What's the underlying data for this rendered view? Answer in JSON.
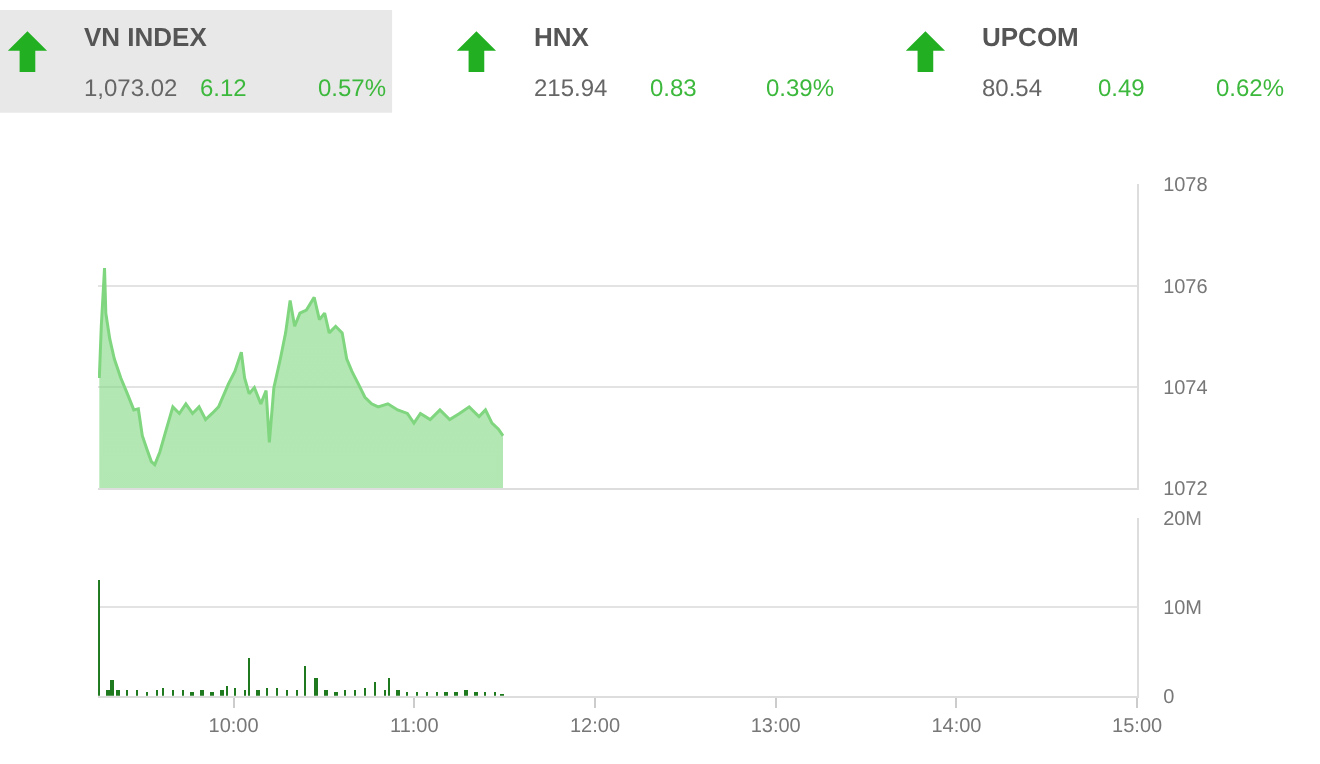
{
  "chart_data": [
    {
      "type": "other",
      "annotations": [
        "VN INDEX",
        "1,073.02",
        "6.12",
        "0.57%",
        "HNX",
        "215.94",
        "0.83",
        "0.39%",
        "UPCOM",
        "80.54",
        "0.49",
        "0.62%"
      ]
    },
    {
      "type": "area",
      "color": "#7fd67f",
      "xlim": [
        9.25,
        15
      ],
      "ylim": [
        1072,
        1078
      ],
      "yticks": [
        1072,
        1074,
        1076,
        1078
      ],
      "grid": "y",
      "tick_labels": "y",
      "x": [
        9.257,
        9.268,
        9.286,
        9.293,
        9.315,
        9.34,
        9.376,
        9.412,
        9.448,
        9.473,
        9.495,
        9.52,
        9.545,
        9.564,
        9.592,
        9.628,
        9.664,
        9.7,
        9.736,
        9.773,
        9.809,
        9.845,
        9.881,
        9.917,
        9.971,
        10.007,
        10.043,
        10.061,
        10.086,
        10.115,
        10.151,
        10.18,
        10.198,
        10.223,
        10.259,
        10.288,
        10.313,
        10.338,
        10.367,
        10.403,
        10.446,
        10.475,
        10.504,
        10.529,
        10.565,
        10.601,
        10.626,
        10.655,
        10.691,
        10.727,
        10.764,
        10.8,
        10.854,
        10.908,
        10.962,
        10.998,
        11.034,
        11.088,
        11.142,
        11.196,
        11.25,
        11.304,
        11.358,
        11.394,
        11.43,
        11.466,
        11.491
      ],
      "values": [
        1074.18,
        1075.2,
        1076.35,
        1075.46,
        1074.95,
        1074.56,
        1074.18,
        1073.87,
        1073.55,
        1073.57,
        1073.04,
        1072.78,
        1072.53,
        1072.47,
        1072.72,
        1073.17,
        1073.61,
        1073.48,
        1073.67,
        1073.48,
        1073.61,
        1073.36,
        1073.48,
        1073.61,
        1074.06,
        1074.31,
        1074.69,
        1074.18,
        1073.87,
        1073.99,
        1073.67,
        1073.93,
        1072.91,
        1073.99,
        1074.56,
        1075.07,
        1075.71,
        1075.2,
        1075.46,
        1075.52,
        1075.77,
        1075.33,
        1075.46,
        1075.07,
        1075.2,
        1075.07,
        1074.56,
        1074.31,
        1074.06,
        1073.8,
        1073.67,
        1073.61,
        1073.67,
        1073.55,
        1073.48,
        1073.29,
        1073.48,
        1073.36,
        1073.55,
        1073.36,
        1073.48,
        1073.61,
        1073.42,
        1073.55,
        1073.29,
        1073.17,
        1073.04
      ]
    },
    {
      "type": "bar",
      "color": "#1f7a1f",
      "xlim": [
        9.25,
        15
      ],
      "ylim": [
        0,
        20
      ],
      "grid": "y",
      "yticks": [
        0,
        {
          "value": 10,
          "label": "10M"
        },
        {
          "value": 20,
          "label": "20M"
        }
      ],
      "xticks": [
        {
          "value": 10,
          "label": "10:00"
        },
        {
          "value": 11,
          "label": "11:00"
        },
        {
          "value": 12,
          "label": "12:00"
        },
        {
          "value": 13,
          "label": "13:00"
        },
        {
          "value": 14,
          "label": "14:00"
        },
        {
          "value": 15,
          "label": "15:00"
        }
      ],
      "x": [
        9.257,
        9.304,
        9.329,
        9.358,
        9.412,
        9.466,
        9.52,
        9.574,
        9.61,
        9.664,
        9.718,
        9.773,
        9.827,
        9.881,
        9.935,
        9.964,
        10.007,
        10.061,
        10.086,
        10.133,
        10.187,
        10.241,
        10.295,
        10.349,
        10.396,
        10.457,
        10.511,
        10.565,
        10.619,
        10.673,
        10.727,
        10.782,
        10.836,
        10.861,
        10.908,
        10.962,
        11.016,
        11.07,
        11.124,
        11.178,
        11.232,
        11.286,
        11.34,
        11.394,
        11.448,
        11.484
      ],
      "values": [
        13.0,
        0.6,
        1.8,
        0.8,
        0.6,
        0.7,
        0.5,
        0.6,
        0.9,
        0.8,
        0.6,
        0.5,
        0.6,
        0.5,
        0.6,
        1.2,
        0.9,
        0.7,
        4.3,
        0.8,
        0.9,
        1.0,
        0.8,
        0.7,
        3.4,
        2.0,
        0.6,
        0.5,
        0.6,
        0.7,
        1.0,
        1.6,
        0.8,
        2.0,
        0.7,
        0.5,
        0.4,
        0.5,
        0.4,
        0.4,
        0.5,
        0.8,
        0.4,
        0.5,
        0.4,
        0.3
      ]
    }
  ]
}
